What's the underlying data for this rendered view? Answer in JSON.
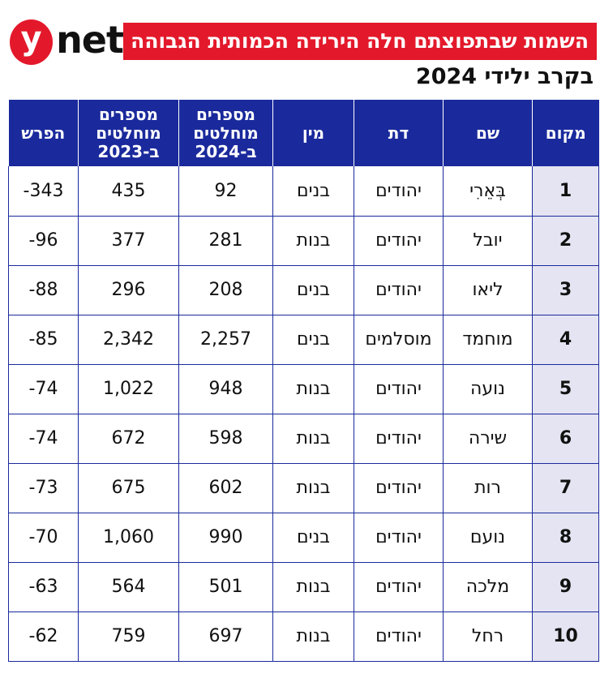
{
  "header": {
    "logo_y": "y",
    "logo_net": "net",
    "title": "השמות שבתפוצתם חלה הירידה הכמותית הגבוהה",
    "subtitle": "בקרב ילידי 2024"
  },
  "table": {
    "columns": {
      "rank": "מקום",
      "name": "שם",
      "religion": "דת",
      "gender": "מין",
      "n2024_line1": "מספרים",
      "n2024_line2": "מוחלטים",
      "n2024_line3": "ב-2024",
      "n2023_line1": "מספרים",
      "n2023_line2": "מוחלטים",
      "n2023_line3": "ב-2023",
      "diff": "הפרש"
    },
    "rows": [
      {
        "rank": "1",
        "name": "בְּאֵרִי",
        "religion": "יהודים",
        "gender": "בנים",
        "n2024": "92",
        "n2023": "435",
        "diff": "-343"
      },
      {
        "rank": "2",
        "name": "יובל",
        "religion": "יהודים",
        "gender": "בנות",
        "n2024": "281",
        "n2023": "377",
        "diff": "-96"
      },
      {
        "rank": "3",
        "name": "ליאו",
        "religion": "יהודים",
        "gender": "בנים",
        "n2024": "208",
        "n2023": "296",
        "diff": "-88"
      },
      {
        "rank": "4",
        "name": "מוחמד",
        "religion": "מוסלמים",
        "gender": "בנים",
        "n2024": "2,257",
        "n2023": "2,342",
        "diff": "-85"
      },
      {
        "rank": "5",
        "name": "נועה",
        "religion": "יהודים",
        "gender": "בנות",
        "n2024": "948",
        "n2023": "1,022",
        "diff": "-74"
      },
      {
        "rank": "6",
        "name": "שירה",
        "religion": "יהודים",
        "gender": "בנות",
        "n2024": "598",
        "n2023": "672",
        "diff": "-74"
      },
      {
        "rank": "7",
        "name": "רות",
        "religion": "יהודים",
        "gender": "בנות",
        "n2024": "602",
        "n2023": "675",
        "diff": "-73"
      },
      {
        "rank": "8",
        "name": "נועם",
        "religion": "יהודים",
        "gender": "בנים",
        "n2024": "990",
        "n2023": "1,060",
        "diff": "-70"
      },
      {
        "rank": "9",
        "name": "מלכה",
        "religion": "יהודים",
        "gender": "בנות",
        "n2024": "501",
        "n2023": "564",
        "diff": "-63"
      },
      {
        "rank": "10",
        "name": "רחל",
        "religion": "יהודים",
        "gender": "בנות",
        "n2024": "697",
        "n2023": "759",
        "diff": "-62"
      }
    ]
  },
  "colors": {
    "brand_red": "#e3192b",
    "header_blue": "#1a2a9c",
    "rank_cell_bg": "#e4e4f2"
  }
}
